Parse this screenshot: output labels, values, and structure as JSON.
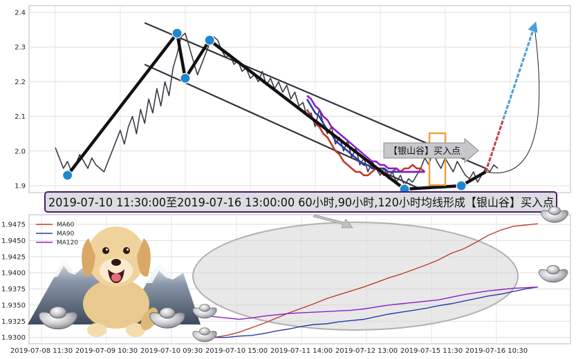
{
  "colors": {
    "price": "#3a3a44",
    "trend": "#111111",
    "channel": "#333340",
    "marker": "#1f86d0",
    "ma60": "#c0392b",
    "ma90": "#2b3aa8",
    "ma120": "#8a1ec8",
    "arrow_blue": "#4aa0d8",
    "arrow_red": "#d04040",
    "box_orange": "#f0a040",
    "banner_border": "#4a1a6a"
  },
  "annotation": {
    "banner": "2019-07-10 11:30:00至2019-07-16 13:00:00 60小时,90小时,120小时均线形成【银山谷】买入点",
    "callout": "【银山谷】买入点"
  },
  "decorations": [
    "dog-illustration",
    "mountain-illustration",
    "silver-ingot-icon"
  ],
  "chart_data": [
    {
      "type": "line",
      "title": "",
      "xlabel": "",
      "ylabel": "",
      "ylim": [
        1.88,
        2.42
      ],
      "yticks": [
        1.9,
        2.0,
        2.1,
        2.2,
        2.3,
        2.4
      ],
      "ytick_labels": [
        "1.9",
        "2.0",
        "2.1",
        "2.2",
        "2.3",
        "2.4"
      ],
      "grid": true,
      "series": [
        {
          "name": "",
          "role": "price",
          "values": [
            2.01,
            1.98,
            1.95,
            1.97,
            1.94,
            1.96,
            1.99,
            1.97,
            1.95,
            1.98,
            1.96,
            1.95,
            1.94,
            1.97,
            2.0,
            2.03,
            2.06,
            2.02,
            2.07,
            2.1,
            2.05,
            2.12,
            2.08,
            2.15,
            2.11,
            2.18,
            2.13,
            2.2,
            2.16,
            2.24,
            2.28,
            2.33,
            2.34,
            2.3,
            2.26,
            2.22,
            2.25,
            2.28,
            2.31,
            2.33,
            2.32,
            2.29,
            2.27,
            2.28,
            2.25,
            2.26,
            2.23,
            2.24,
            2.21,
            2.22,
            2.2,
            2.23,
            2.19,
            2.21,
            2.18,
            2.2,
            2.17,
            2.19,
            2.15,
            2.17,
            2.13,
            2.14,
            2.1,
            2.11,
            2.07,
            2.12,
            2.08,
            2.05,
            2.07,
            2.02,
            2.04,
            2.0,
            2.03,
            1.98,
            2.01,
            1.96,
            1.98,
            1.94,
            1.97,
            1.95,
            1.93,
            1.95,
            1.92,
            1.94,
            1.91,
            1.93,
            1.9,
            1.92,
            1.91,
            1.93,
            1.95,
            1.98,
            1.96,
            2.0,
            1.97,
            1.95,
            1.98,
            1.96,
            1.94,
            1.97,
            1.95,
            1.93,
            1.92,
            1.94,
            1.91,
            1.93,
            1.95,
            1.94,
            1.96,
            1.95
          ]
        },
        {
          "name": "",
          "role": "MA60-upper",
          "values": [
            null,
            null,
            null,
            null,
            null,
            null,
            null,
            null,
            null,
            null,
            null,
            null,
            null,
            null,
            null,
            null,
            null,
            null,
            null,
            null,
            null,
            null,
            null,
            null,
            null,
            null,
            null,
            null,
            null,
            null,
            null,
            null,
            null,
            null,
            null,
            null,
            null,
            null,
            null,
            null,
            null,
            null,
            null,
            null,
            null,
            null,
            null,
            null,
            null,
            null,
            null,
            null,
            null,
            null,
            null,
            null,
            null,
            null,
            null,
            null,
            null,
            null,
            2.12,
            2.1,
            2.08,
            2.07,
            2.05,
            2.04,
            2.02,
            2.0,
            1.99,
            1.97,
            1.96,
            1.95,
            1.94,
            1.94,
            1.93,
            1.93,
            1.94,
            1.95,
            1.94,
            1.93,
            1.94,
            1.94,
            1.95,
            1.94,
            1.95,
            1.95,
            1.96,
            1.95,
            1.95,
            1.94
          ]
        },
        {
          "name": "",
          "role": "MA90-upper",
          "values": [
            null,
            null,
            null,
            null,
            null,
            null,
            null,
            null,
            null,
            null,
            null,
            null,
            null,
            null,
            null,
            null,
            null,
            null,
            null,
            null,
            null,
            null,
            null,
            null,
            null,
            null,
            null,
            null,
            null,
            null,
            null,
            null,
            null,
            null,
            null,
            null,
            null,
            null,
            null,
            null,
            null,
            null,
            null,
            null,
            null,
            null,
            null,
            null,
            null,
            null,
            null,
            null,
            null,
            null,
            null,
            null,
            null,
            null,
            null,
            null,
            null,
            null,
            2.15,
            2.13,
            2.11,
            2.1,
            2.08,
            2.06,
            2.05,
            2.03,
            2.02,
            2.01,
            2.0,
            1.99,
            1.98,
            1.97,
            1.96,
            1.96,
            1.95,
            1.95,
            1.95,
            1.95,
            1.94,
            1.94,
            1.94,
            1.94,
            1.94,
            1.94,
            1.94,
            1.94,
            1.94,
            1.94
          ]
        },
        {
          "name": "",
          "role": "MA120-upper",
          "values": [
            null,
            null,
            null,
            null,
            null,
            null,
            null,
            null,
            null,
            null,
            null,
            null,
            null,
            null,
            null,
            null,
            null,
            null,
            null,
            null,
            null,
            null,
            null,
            null,
            null,
            null,
            null,
            null,
            null,
            null,
            null,
            null,
            null,
            null,
            null,
            null,
            null,
            null,
            null,
            null,
            null,
            null,
            null,
            null,
            null,
            null,
            null,
            null,
            null,
            null,
            null,
            null,
            null,
            null,
            null,
            null,
            null,
            null,
            null,
            null,
            null,
            null,
            2.16,
            2.15,
            2.13,
            2.12,
            2.1,
            2.09,
            2.07,
            2.06,
            2.05,
            2.04,
            2.03,
            2.02,
            2.01,
            2.0,
            1.99,
            1.98,
            1.97,
            1.97,
            1.96,
            1.96,
            1.95,
            1.95,
            1.95,
            1.94,
            1.94,
            1.94,
            1.94,
            1.94,
            1.94,
            1.94
          ]
        }
      ],
      "trend_points": [
        [
          3,
          1.93
        ],
        [
          30,
          2.34
        ],
        [
          32,
          2.21
        ],
        [
          38,
          2.32
        ],
        [
          86,
          1.89
        ],
        [
          100,
          1.9
        ],
        [
          106,
          1.94
        ]
      ],
      "channel_lines": [
        [
          [
            22,
            2.37
          ],
          [
            106,
            1.95
          ]
        ],
        [
          [
            22,
            2.25
          ],
          [
            90,
            1.89
          ]
        ]
      ],
      "markers": [
        [
          3,
          1.93
        ],
        [
          30,
          2.34
        ],
        [
          32,
          2.21
        ],
        [
          38,
          2.32
        ],
        [
          86,
          1.89
        ],
        [
          100,
          1.9
        ]
      ],
      "projection": [
        [
          106,
          1.94
        ],
        [
          118,
          2.36
        ]
      ]
    },
    {
      "type": "line",
      "title": "",
      "xlabel": "",
      "ylabel": "",
      "ylim": [
        1.929,
        1.949
      ],
      "yticks": [
        1.93,
        1.9325,
        1.935,
        1.9375,
        1.94,
        1.9425,
        1.945,
        1.9475
      ],
      "ytick_labels": [
        "1.9300",
        "1.9325",
        "1.9350",
        "1.9375",
        "1.9400",
        "1.9425",
        "1.9450",
        "1.9475"
      ],
      "x_tick_labels": [
        "2019-07-08 11:30",
        "2019-07-09 10:30",
        "2019-07-10 09:30",
        "2019-07-10 15:00",
        "2019-07-11 14:00",
        "2019-07-12 13:00",
        "2019-07-15 11:30",
        "2019-07-16 10:30"
      ],
      "grid": true,
      "legend": "top-left",
      "series": [
        {
          "name": "MA60",
          "values": [
            1.9295,
            1.93,
            1.9303,
            1.9308,
            1.9315,
            1.9322,
            1.933,
            1.9338,
            1.9345,
            1.9352,
            1.936,
            1.9366,
            1.9372,
            1.9378,
            1.9385,
            1.9392,
            1.9398,
            1.9405,
            1.9412,
            1.942,
            1.943,
            1.9437,
            1.9447,
            1.9458,
            1.9466,
            1.9472,
            1.9474,
            1.9476
          ]
        },
        {
          "name": "MA90",
          "values": [
            1.93,
            1.93,
            1.93,
            1.9302,
            1.9303,
            1.9306,
            1.931,
            1.9313,
            1.9317,
            1.932,
            1.9321,
            1.9324,
            1.9326,
            1.9328,
            1.9332,
            1.9336,
            1.9339,
            1.9342,
            1.9345,
            1.9349,
            1.9352,
            1.9356,
            1.936,
            1.9364,
            1.9367,
            1.9371,
            1.9375,
            1.9378
          ]
        },
        {
          "name": "MA120",
          "values": [
            1.9334,
            1.9332,
            1.933,
            1.9328,
            1.933,
            1.9333,
            1.9335,
            1.9337,
            1.9338,
            1.9339,
            1.934,
            1.9341,
            1.9342,
            1.9344,
            1.9347,
            1.935,
            1.9352,
            1.9354,
            1.9356,
            1.9358,
            1.9362,
            1.9366,
            1.9369,
            1.9372,
            1.9374,
            1.9376,
            1.9377,
            1.9378
          ]
        }
      ]
    }
  ]
}
